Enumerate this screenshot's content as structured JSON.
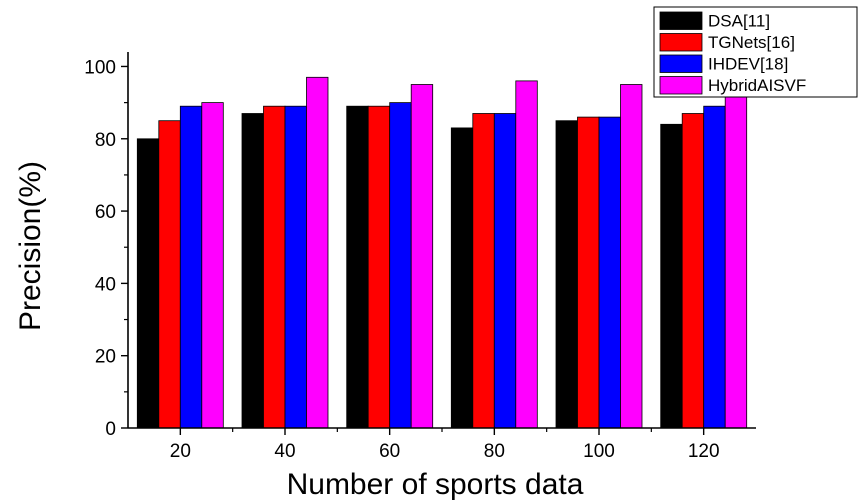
{
  "chart_data": {
    "type": "bar",
    "title": "",
    "xlabel": "Number of sports data",
    "ylabel": "Precision(%)",
    "categories": [
      "20",
      "40",
      "60",
      "80",
      "100",
      "120"
    ],
    "ylim": [
      0,
      104
    ],
    "yticks": [
      "0",
      "20",
      "40",
      "60",
      "80",
      "100"
    ],
    "grid": false,
    "legend_position": "top-right",
    "series": [
      {
        "name": "DSA[11]",
        "color": "#000000",
        "values": [
          80,
          87,
          89,
          83,
          85,
          84
        ]
      },
      {
        "name": "TGNets[16]",
        "color": "#ff0000",
        "values": [
          85,
          89,
          89,
          87,
          86,
          87
        ]
      },
      {
        "name": "IHDEV[18]",
        "color": "#0000ff",
        "values": [
          89,
          89,
          90,
          87,
          86,
          89
        ]
      },
      {
        "name": "HybridAISVF",
        "color": "#ff00ff",
        "values": [
          90,
          97,
          95,
          96,
          95,
          92
        ]
      }
    ]
  }
}
